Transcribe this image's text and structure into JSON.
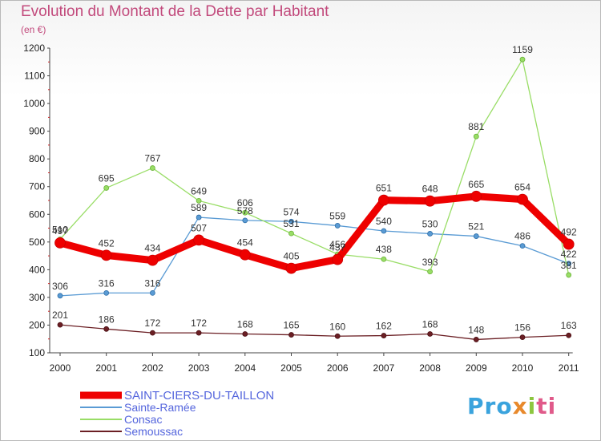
{
  "title": "Evolution du Montant de la Dette par Habitant",
  "subtitle": "(en €)",
  "logo": {
    "p1": "Pro",
    "p2": "x",
    "p3": "i",
    "p4": "ti"
  },
  "colors": {
    "title": "#c24a7c",
    "main": "#ee0000",
    "sainte_ramee": "#5a9bd4",
    "consac": "#99dd66",
    "semoussac": "#6b1f24",
    "axis": "#444444",
    "legend_text": "#5566dd"
  },
  "chart_data": {
    "type": "line",
    "x": [
      "2000",
      "2001",
      "2002",
      "2003",
      "2004",
      "2005",
      "2006",
      "2007",
      "2008",
      "2009",
      "2010",
      "2011"
    ],
    "ylim": [
      100,
      1200
    ],
    "yticks": [
      100,
      200,
      300,
      400,
      500,
      600,
      700,
      800,
      900,
      1000,
      1100,
      1200
    ],
    "grid": false,
    "legend_position": "bottom-left",
    "series": [
      {
        "name": "SAINT-CIERS-DU-TAILLON",
        "color": "#ee0000",
        "values": [
          497,
          452,
          434,
          507,
          454,
          405,
          437,
          651,
          648,
          665,
          654,
          492
        ]
      },
      {
        "name": "Sainte-Ramée",
        "color": "#5a9bd4",
        "values": [
          306,
          316,
          316,
          589,
          578,
          574,
          559,
          540,
          530,
          521,
          486,
          422
        ]
      },
      {
        "name": "Consac",
        "color": "#99dd66",
        "values": [
          510,
          695,
          767,
          649,
          606,
          531,
          456,
          438,
          393,
          881,
          1159,
          381
        ]
      },
      {
        "name": "Semoussac",
        "color": "#6b1f24",
        "values": [
          201,
          186,
          172,
          172,
          168,
          165,
          160,
          162,
          168,
          148,
          156,
          163
        ]
      }
    ]
  }
}
